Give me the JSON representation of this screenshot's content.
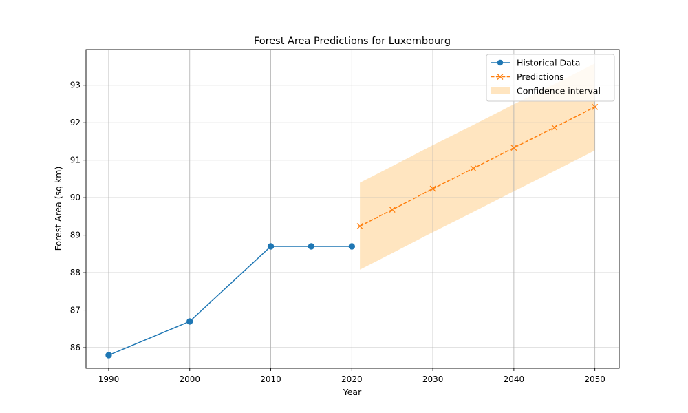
{
  "chart_data": {
    "type": "line",
    "title": "Forest Area Predictions for Luxembourg",
    "xlabel": "Year",
    "ylabel": "Forest Area (sq km)",
    "xlim": [
      1987.2,
      2053
    ],
    "ylim": [
      85.45,
      93.95
    ],
    "x_ticks": [
      1990,
      2000,
      2010,
      2020,
      2030,
      2040,
      2050
    ],
    "y_ticks": [
      86,
      87,
      88,
      89,
      90,
      91,
      92,
      93
    ],
    "grid": true,
    "legend_location": "upper-right",
    "series": [
      {
        "name": "Historical Data",
        "color": "#1f77b4",
        "line_style": "solid",
        "marker": "circle",
        "x": [
          1990,
          2000,
          2010,
          2015,
          2020
        ],
        "y": [
          85.8,
          86.7,
          88.7,
          88.7,
          88.7
        ]
      },
      {
        "name": "Predictions",
        "color": "#ff7f0e",
        "line_style": "dashed",
        "marker": "x",
        "x": [
          2021,
          2025,
          2030,
          2035,
          2040,
          2045,
          2050
        ],
        "y": [
          89.24,
          89.68,
          90.24,
          90.78,
          91.33,
          91.87,
          92.42
        ]
      }
    ],
    "confidence_interval": {
      "name": "Confidence interval",
      "color": "#ffe5c0",
      "x": [
        2021,
        2025,
        2030,
        2035,
        2040,
        2045,
        2050
      ],
      "lower": [
        88.08,
        88.52,
        89.08,
        89.62,
        90.17,
        90.71,
        91.26
      ],
      "upper": [
        90.4,
        90.84,
        91.4,
        91.94,
        92.49,
        93.03,
        93.58
      ]
    }
  }
}
